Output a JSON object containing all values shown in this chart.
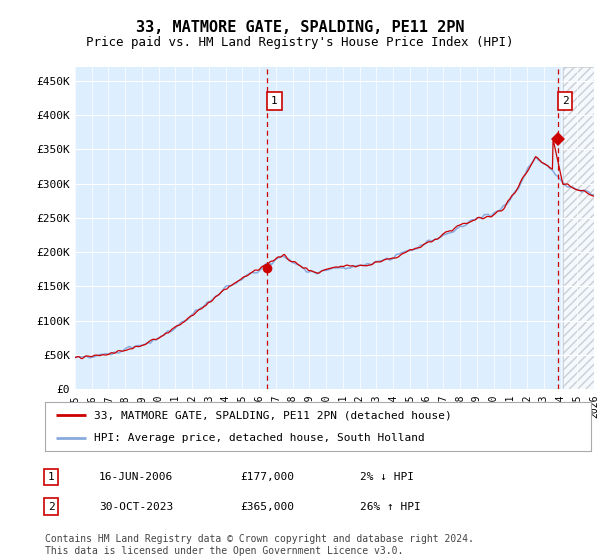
{
  "title": "33, MATMORE GATE, SPALDING, PE11 2PN",
  "subtitle": "Price paid vs. HM Land Registry's House Price Index (HPI)",
  "background_color": "#ddeeff",
  "ylim": [
    0,
    470000
  ],
  "yticks": [
    0,
    50000,
    100000,
    150000,
    200000,
    250000,
    300000,
    350000,
    400000,
    450000
  ],
  "ytick_labels": [
    "£0",
    "£50K",
    "£100K",
    "£150K",
    "£200K",
    "£250K",
    "£300K",
    "£350K",
    "£400K",
    "£450K"
  ],
  "line_red_color": "#cc0000",
  "line_blue_color": "#88aadd",
  "sale1_x": 2006.46,
  "sale1_y": 177000,
  "sale2_x": 2023.83,
  "sale2_y": 365000,
  "hatch_start": 2024.17,
  "legend_line1": "33, MATMORE GATE, SPALDING, PE11 2PN (detached house)",
  "legend_line2": "HPI: Average price, detached house, South Holland",
  "table_row1_num": "1",
  "table_row1_date": "16-JUN-2006",
  "table_row1_price": "£177,000",
  "table_row1_hpi": "2% ↓ HPI",
  "table_row2_num": "2",
  "table_row2_date": "30-OCT-2023",
  "table_row2_price": "£365,000",
  "table_row2_hpi": "26% ↑ HPI",
  "footnote": "Contains HM Land Registry data © Crown copyright and database right 2024.\nThis data is licensed under the Open Government Licence v3.0.",
  "xmin": 1995,
  "xmax": 2026,
  "figwidth": 6.0,
  "figheight": 5.6,
  "dpi": 100
}
